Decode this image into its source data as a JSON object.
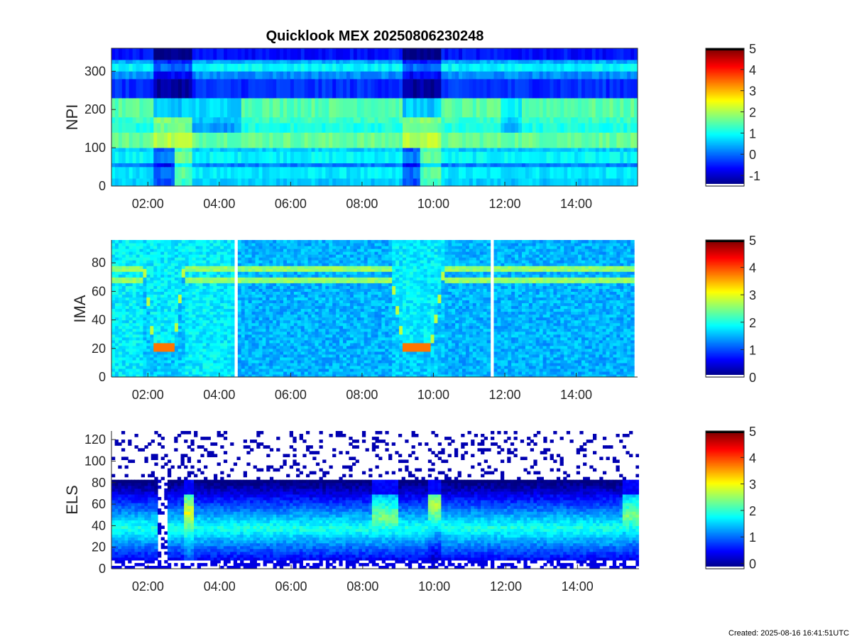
{
  "figure": {
    "title": "Quicklook MEX 20250806230248",
    "created": "Created: 2025-08-16 16:41:51UTC"
  },
  "chart_data": [
    {
      "type": "heatmap",
      "instrument": "NPI",
      "ylabel": "NPI",
      "xlabel": "",
      "ylim": [
        0,
        360
      ],
      "yticks": [
        0,
        100,
        200,
        300
      ],
      "xlim_hours": [
        0.98,
        15.72
      ],
      "xticks": [
        "02:00",
        "04:00",
        "06:00",
        "08:00",
        "10:00",
        "12:00",
        "14:00"
      ],
      "xtick_hours": [
        2,
        4,
        6,
        8,
        10,
        12,
        14
      ],
      "colorbar": {
        "ticks": [
          "-1",
          "0",
          "1",
          "2",
          "3",
          "4",
          "5"
        ],
        "range": [
          -1.5,
          5
        ]
      },
      "bands": [
        {
          "y": [
            0,
            20
          ],
          "level": 0.6
        },
        {
          "y": [
            20,
            50
          ],
          "level": 0.8
        },
        {
          "y": [
            50,
            60
          ],
          "level": 0.1
        },
        {
          "y": [
            60,
            90
          ],
          "level": 0.9
        },
        {
          "y": [
            90,
            100
          ],
          "level": 0.6
        },
        {
          "y": [
            100,
            140
          ],
          "level": 1.6
        },
        {
          "y": [
            140,
            165
          ],
          "level": 1.1
        },
        {
          "y": [
            165,
            180
          ],
          "level": 1.3
        },
        {
          "y": [
            180,
            230
          ],
          "level": 1.5
        },
        {
          "y": [
            230,
            280
          ],
          "level": -0.4
        },
        {
          "y": [
            280,
            300
          ],
          "level": 0.2
        },
        {
          "y": [
            300,
            320
          ],
          "level": 0.9
        },
        {
          "y": [
            320,
            330
          ],
          "level": 0.4
        },
        {
          "y": [
            330,
            360
          ],
          "level": -0.6
        }
      ],
      "events": [
        {
          "t": [
            2.2,
            3.2
          ],
          "note": "dip"
        },
        {
          "t": [
            9.1,
            10.2
          ],
          "note": "dip"
        }
      ]
    },
    {
      "type": "heatmap",
      "instrument": "IMA",
      "ylabel": "IMA",
      "xlabel": "",
      "ylim": [
        0,
        96
      ],
      "yticks": [
        0,
        20,
        40,
        60,
        80
      ],
      "xlim_hours": [
        0.98,
        15.72
      ],
      "xticks": [
        "02:00",
        "04:00",
        "06:00",
        "08:00",
        "10:00",
        "12:00",
        "14:00"
      ],
      "xtick_hours": [
        2,
        4,
        6,
        8,
        10,
        12,
        14
      ],
      "colorbar": {
        "ticks": [
          "0",
          "1",
          "2",
          "3",
          "4",
          "5"
        ],
        "range": [
          0,
          5
        ]
      },
      "data_gaps_hours": [
        [
          4.45,
          4.55
        ],
        [
          11.55,
          11.68
        ]
      ],
      "data_end_hours": 15.62,
      "background_level": 1.8,
      "band_level": 2.6,
      "band_centers": [
        68,
        76
      ],
      "dips": [
        {
          "t": [
            1.9,
            3.0
          ],
          "floor_y": 21,
          "floor_level": 3.8
        },
        {
          "t": [
            8.8,
            10.3
          ],
          "floor_y": 21,
          "floor_level": 3.8
        }
      ]
    },
    {
      "type": "heatmap",
      "instrument": "ELS",
      "ylabel": "ELS",
      "xlabel": "",
      "ylim": [
        0,
        128
      ],
      "yticks": [
        0,
        20,
        40,
        60,
        80,
        100,
        120
      ],
      "xlim_hours": [
        0.98,
        15.72
      ],
      "xticks": [
        "02:00",
        "04:00",
        "06:00",
        "08:00",
        "10:00",
        "12:00",
        "14:00"
      ],
      "xtick_hours": [
        2,
        4,
        6,
        8,
        10,
        12,
        14
      ],
      "colorbar": {
        "ticks": [
          "0",
          "1",
          "2",
          "3",
          "4",
          "5"
        ],
        "range": [
          -0.2,
          5
        ]
      },
      "core_center": 38,
      "core_level": 1.9,
      "noise_above": 82,
      "hot_regions": [
        {
          "t": [
            3.0,
            3.3
          ],
          "center": 52,
          "level": 2.9
        },
        {
          "t": [
            8.3,
            9.0
          ],
          "center": 48,
          "level": 2.4
        },
        {
          "t": [
            9.8,
            10.2
          ],
          "center": 60,
          "level": 2.7
        },
        {
          "t": [
            15.3,
            15.7
          ],
          "center": 50,
          "level": 2.4
        }
      ],
      "dropouts": [
        {
          "t": [
            2.25,
            2.55
          ]
        }
      ]
    }
  ]
}
